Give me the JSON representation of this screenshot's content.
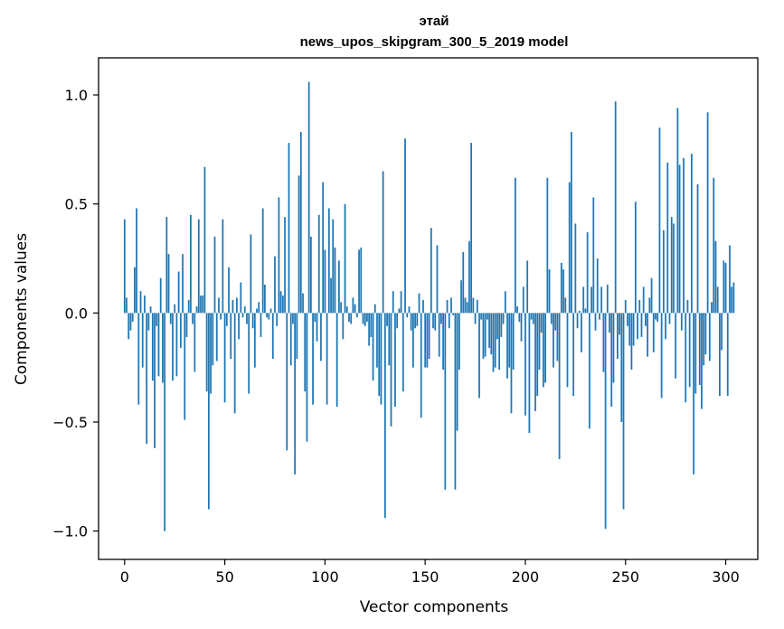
{
  "chart_data": {
    "type": "bar",
    "title": "этай",
    "subtitle": "news_upos_skipgram_300_5_2019 model",
    "xlabel": "Vector components",
    "ylabel": "Components values",
    "xlim": [
      -13,
      316
    ],
    "ylim": [
      -1.13,
      1.17
    ],
    "xticks": [
      0,
      50,
      100,
      150,
      200,
      250,
      300
    ],
    "xtick_labels": [
      "0",
      "50",
      "100",
      "150",
      "200",
      "250",
      "300"
    ],
    "yticks": [
      -1.0,
      -0.5,
      0.0,
      0.5,
      1.0
    ],
    "ytick_labels": [
      "−1.0",
      "−0.5",
      "0.0",
      "0.5",
      "1.0"
    ],
    "bar_color": "#1f77b4",
    "grid": false,
    "values": [
      0.43,
      0.07,
      -0.12,
      -0.08,
      -0.04,
      0.21,
      0.48,
      -0.42,
      0.1,
      -0.25,
      0.08,
      -0.6,
      -0.08,
      0.03,
      -0.31,
      -0.62,
      -0.06,
      -0.29,
      0.16,
      -0.32,
      -1.0,
      0.44,
      0.27,
      -0.05,
      -0.31,
      0.04,
      -0.29,
      0.19,
      -0.16,
      0.27,
      -0.49,
      -0.11,
      0.06,
      0.45,
      -0.05,
      -0.27,
      0.03,
      0.43,
      0.08,
      0.08,
      0.67,
      -0.36,
      -0.9,
      -0.37,
      -0.24,
      0.35,
      -0.22,
      0.07,
      -0.03,
      0.43,
      -0.41,
      -0.06,
      0.21,
      -0.21,
      0.06,
      -0.46,
      0.07,
      -0.12,
      0.14,
      -0.02,
      0.03,
      -0.05,
      -0.37,
      0.36,
      -0.07,
      -0.25,
      0.02,
      0.05,
      -0.11,
      0.48,
      0.13,
      -0.02,
      -0.03,
      0.02,
      -0.21,
      0.26,
      -0.06,
      0.53,
      0.1,
      0.08,
      0.44,
      -0.63,
      0.78,
      -0.24,
      -0.05,
      -0.74,
      -0.21,
      0.63,
      0.83,
      0.09,
      -0.36,
      -0.59,
      1.06,
      0.35,
      -0.42,
      -0.04,
      -0.13,
      0.45,
      -0.22,
      0.6,
      0.29,
      -0.42,
      0.48,
      0.16,
      0.43,
      0.3,
      -0.43,
      0.24,
      0.05,
      -0.12,
      0.5,
      0.03,
      -0.04,
      -0.05,
      0.07,
      0.04,
      -0.02,
      0.29,
      0.3,
      -0.05,
      -0.06,
      -0.04,
      -0.15,
      -0.11,
      -0.31,
      0.04,
      -0.25,
      -0.38,
      -0.42,
      0.65,
      -0.94,
      -0.06,
      -0.24,
      -0.52,
      0.1,
      -0.43,
      -0.07,
      0.02,
      0.1,
      -0.36,
      0.8,
      -0.02,
      0.03,
      -0.08,
      -0.25,
      -0.07,
      -0.06,
      0.09,
      -0.48,
      0.06,
      -0.25,
      -0.25,
      -0.21,
      0.39,
      -0.07,
      -0.08,
      0.31,
      -0.2,
      -0.05,
      -0.26,
      -0.81,
      0.06,
      -0.07,
      0.07,
      -0.01,
      -0.81,
      -0.54,
      -0.26,
      0.15,
      0.28,
      0.07,
      0.05,
      0.33,
      0.78,
      0.07,
      -0.05,
      0.06,
      -0.39,
      -0.03,
      -0.21,
      -0.2,
      -0.03,
      -0.16,
      -0.19,
      -0.27,
      -0.25,
      -0.12,
      -0.26,
      -0.11,
      -0.05,
      0.1,
      -0.3,
      -0.25,
      -0.46,
      -0.26,
      0.62,
      0.03,
      -0.04,
      -0.13,
      0.12,
      -0.47,
      0.24,
      -0.55,
      -0.03,
      -0.05,
      -0.45,
      -0.38,
      -0.26,
      -0.09,
      -0.34,
      -0.32,
      0.62,
      0.2,
      -0.05,
      -0.25,
      -0.08,
      -0.22,
      -0.67,
      0.23,
      0.2,
      0.07,
      -0.34,
      0.6,
      0.83,
      -0.38,
      0.41,
      -0.07,
      0.01,
      -0.18,
      0.12,
      0.02,
      0.37,
      -0.53,
      0.12,
      0.53,
      -0.08,
      0.25,
      -0.03,
      0.12,
      -0.27,
      -0.99,
      0.13,
      -0.09,
      -0.43,
      -0.32,
      0.97,
      -0.21,
      -0.1,
      -0.5,
      -0.9,
      0.06,
      -0.06,
      -0.15,
      -0.26,
      -0.15,
      0.51,
      -0.12,
      0.06,
      -0.11,
      0.12,
      -0.06,
      -0.2,
      0.07,
      0.16,
      -0.18,
      -0.03,
      -0.04,
      0.85,
      -0.39,
      0.38,
      -0.12,
      0.69,
      -0.05,
      0.44,
      0.41,
      -0.3,
      0.94,
      0.68,
      -0.08,
      0.71,
      -0.41,
      0.06,
      -0.34,
      0.73,
      -0.74,
      -0.37,
      0.59,
      -0.33,
      -0.44,
      -0.24,
      -0.19,
      0.92,
      -0.22,
      0.05,
      0.62,
      0.33,
      0.12,
      -0.38,
      -0.17,
      0.24,
      0.23,
      -0.38,
      0.31,
      0.12,
      0.14
    ],
    "series": [
      {
        "name": "этай",
        "values": []
      }
    ]
  }
}
